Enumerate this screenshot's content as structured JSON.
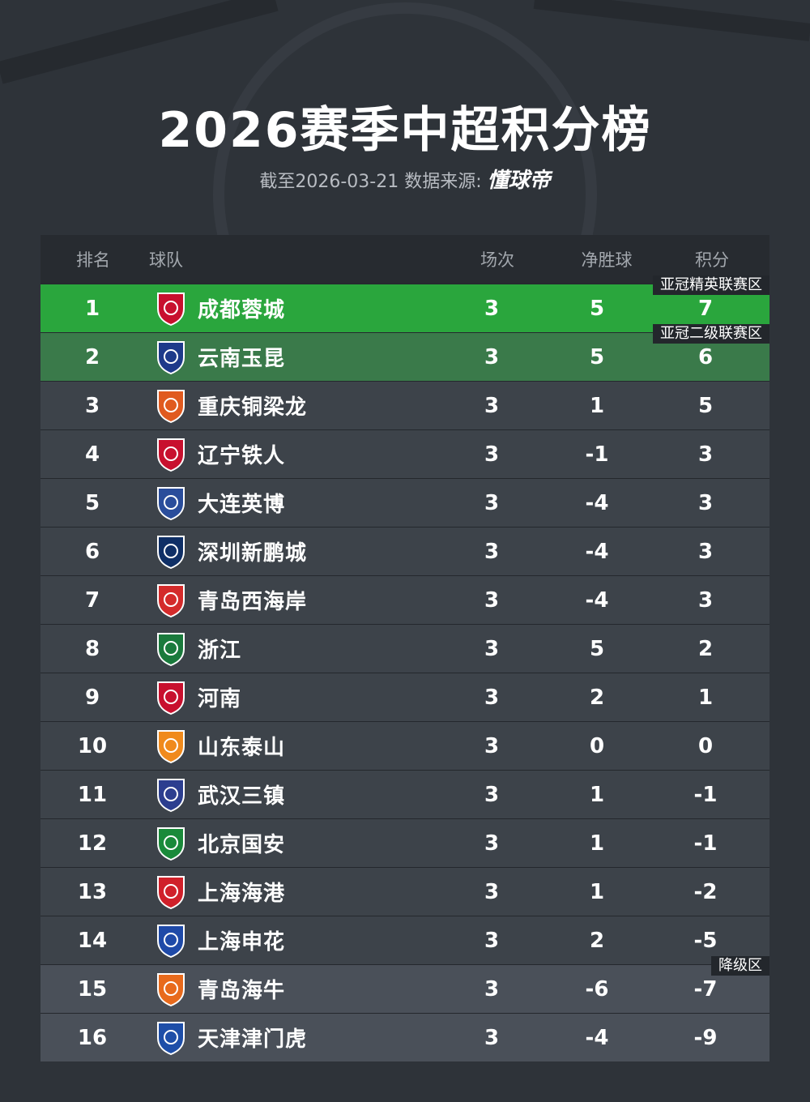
{
  "header": {
    "title": "2026赛季中超积分榜",
    "subtitle_prefix": "截至2026-03-21 数据来源:",
    "brand": "懂球帝"
  },
  "table": {
    "columns": {
      "rank": "排名",
      "team": "球队",
      "played": "场次",
      "goal_diff": "净胜球",
      "points": "积分"
    },
    "zones": {
      "acl_elite": "亚冠精英联赛区",
      "acl_two": "亚冠二级联赛区",
      "relegation": "降级区"
    },
    "rows": [
      {
        "rank": "1",
        "team": "成都蓉城",
        "played": "3",
        "gd": "5",
        "pts": "7",
        "logo_icon": "chengdu-rongcheng-crest-icon",
        "color": "#c8102e"
      },
      {
        "rank": "2",
        "team": "云南玉昆",
        "played": "3",
        "gd": "5",
        "pts": "6",
        "logo_icon": "yunnan-yukun-crest-icon",
        "color": "#1e3a8a"
      },
      {
        "rank": "3",
        "team": "重庆铜梁龙",
        "played": "3",
        "gd": "1",
        "pts": "5",
        "logo_icon": "chongqing-tongliang-long-crest-icon",
        "color": "#e05a1f"
      },
      {
        "rank": "4",
        "team": "辽宁铁人",
        "played": "3",
        "gd": "-1",
        "pts": "3",
        "logo_icon": "liaoning-tieren-crest-icon",
        "color": "#c8102e"
      },
      {
        "rank": "5",
        "team": "大连英博",
        "played": "3",
        "gd": "-4",
        "pts": "3",
        "logo_icon": "dalian-yingbo-crest-icon",
        "color": "#2a4d9b"
      },
      {
        "rank": "6",
        "team": "深圳新鹏城",
        "played": "3",
        "gd": "-4",
        "pts": "3",
        "logo_icon": "shenzhen-xinpengcheng-crest-icon",
        "color": "#0f2f66"
      },
      {
        "rank": "7",
        "team": "青岛西海岸",
        "played": "3",
        "gd": "-4",
        "pts": "3",
        "logo_icon": "qingdao-xihaian-crest-icon",
        "color": "#d42b2b"
      },
      {
        "rank": "8",
        "team": "浙江",
        "played": "3",
        "gd": "5",
        "pts": "2",
        "logo_icon": "zhejiang-crest-icon",
        "color": "#1a7a3c"
      },
      {
        "rank": "9",
        "team": "河南",
        "played": "3",
        "gd": "2",
        "pts": "1",
        "logo_icon": "henan-crest-icon",
        "color": "#c8102e"
      },
      {
        "rank": "10",
        "team": "山东泰山",
        "played": "3",
        "gd": "0",
        "pts": "0",
        "logo_icon": "shandong-taishan-crest-icon",
        "color": "#f08a1c"
      },
      {
        "rank": "11",
        "team": "武汉三镇",
        "played": "3",
        "gd": "1",
        "pts": "-1",
        "logo_icon": "wuhan-sanzhen-crest-icon",
        "color": "#2c3e8f"
      },
      {
        "rank": "12",
        "team": "北京国安",
        "played": "3",
        "gd": "1",
        "pts": "-1",
        "logo_icon": "beijing-guoan-crest-icon",
        "color": "#1a8a3a"
      },
      {
        "rank": "13",
        "team": "上海海港",
        "played": "3",
        "gd": "1",
        "pts": "-2",
        "logo_icon": "shanghai-haigang-crest-icon",
        "color": "#d0202a"
      },
      {
        "rank": "14",
        "team": "上海申花",
        "played": "3",
        "gd": "2",
        "pts": "-5",
        "logo_icon": "shanghai-shenhua-crest-icon",
        "color": "#1f4aa8"
      },
      {
        "rank": "15",
        "team": "青岛海牛",
        "played": "3",
        "gd": "-6",
        "pts": "-7",
        "logo_icon": "qingdao-hainiu-crest-icon",
        "color": "#e86a1c"
      },
      {
        "rank": "16",
        "team": "天津津门虎",
        "played": "3",
        "gd": "-4",
        "pts": "-9",
        "logo_icon": "tianjin-jinmenhu-crest-icon",
        "color": "#1e4ea8"
      }
    ]
  }
}
